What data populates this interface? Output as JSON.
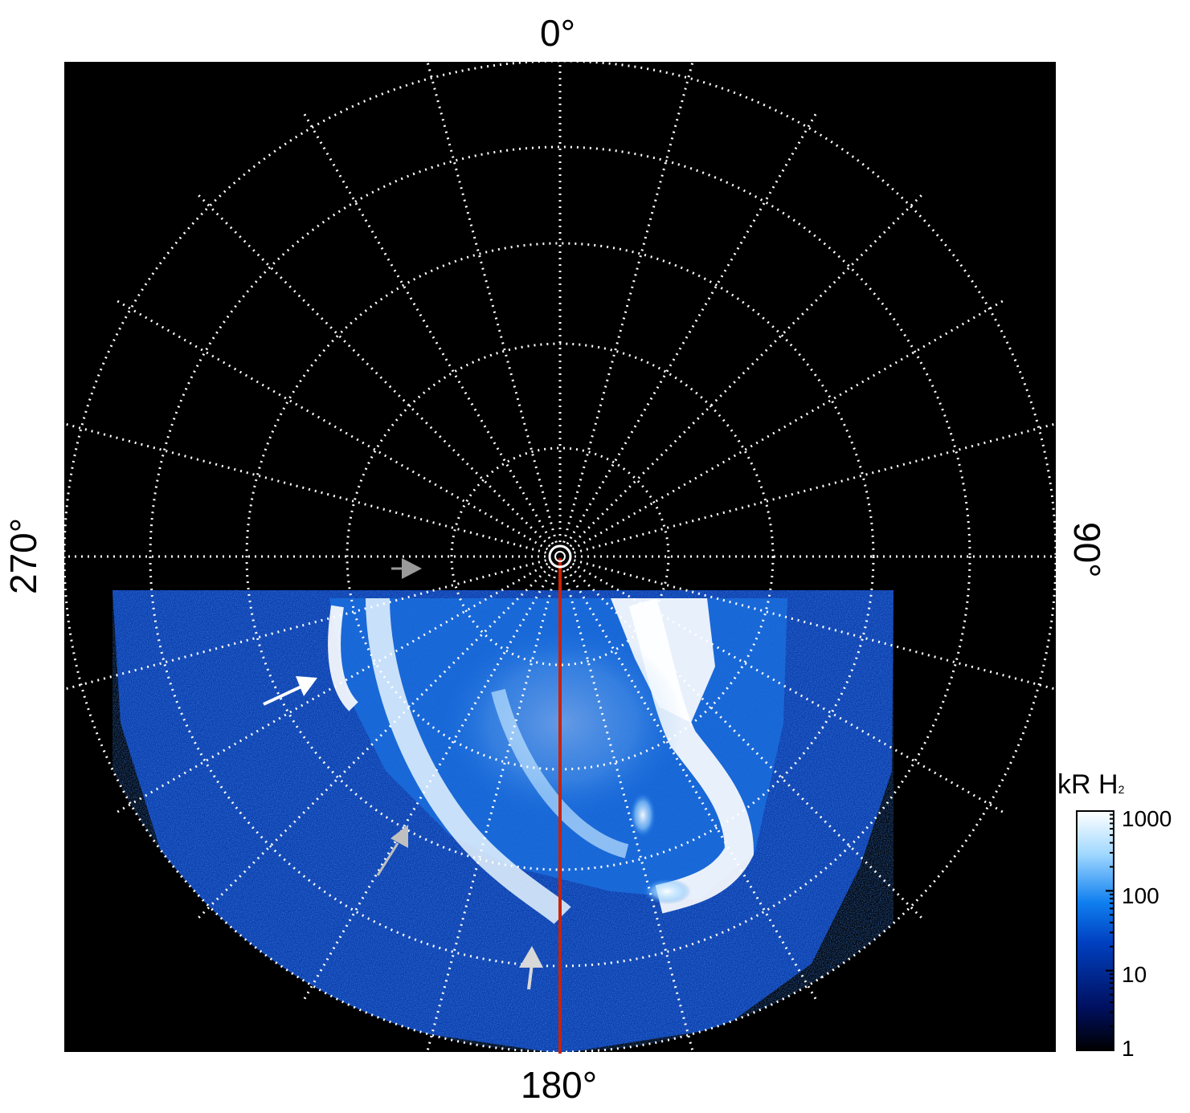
{
  "labels": {
    "top": "0°",
    "right": "90°",
    "bottom": "180°",
    "left": "270°"
  },
  "colorbar": {
    "title_main": "kR H",
    "title_sub": "2",
    "ticks": [
      "1000",
      "100",
      "10",
      "1"
    ],
    "scale": "log",
    "range": [
      1,
      1000
    ],
    "colors": [
      "#000000",
      "#001060",
      "#0040c0",
      "#1080f0",
      "#a0d8ff",
      "#ffffff"
    ]
  },
  "map": {
    "projection": "polar",
    "background": "#000000",
    "grid_color": "#ffffff",
    "grid_style": "dotted",
    "meridian_step_deg": 15,
    "reference_line": {
      "longitude": "180°",
      "color": "#cc2200"
    }
  },
  "arrows": [
    {
      "name": "white-arrow",
      "color": "#ffffff"
    },
    {
      "name": "gray-arrow-center",
      "color": "#aaaaaa"
    },
    {
      "name": "gray-arrow-lower",
      "color": "#c0c0c0"
    },
    {
      "name": "gray-arrow-bottom",
      "color": "#d8d8d8"
    }
  ]
}
